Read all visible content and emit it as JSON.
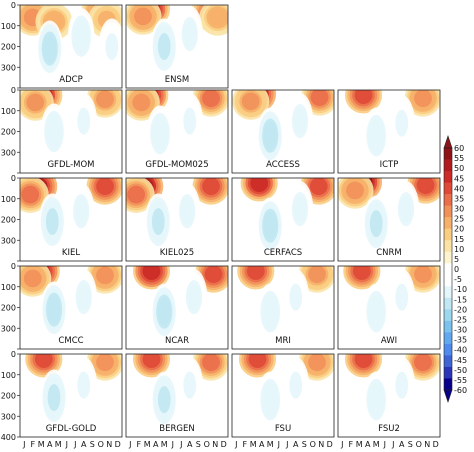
{
  "chart_data": {
    "type": "heatmap",
    "title": "",
    "xlabel": "",
    "ylabel": "",
    "months": [
      "J",
      "F",
      "M",
      "A",
      "M",
      "J",
      "J",
      "A",
      "S",
      "O",
      "N",
      "D"
    ],
    "y_ticks": [
      0,
      100,
      200,
      300,
      400
    ],
    "ylim": [
      400,
      0
    ],
    "colorbar": {
      "ticks": [
        60,
        55,
        50,
        45,
        40,
        35,
        30,
        25,
        20,
        15,
        10,
        5,
        0,
        -5,
        -10,
        -15,
        -20,
        -25,
        -30,
        -35,
        -40,
        -45,
        -50,
        -55,
        -60
      ],
      "tick_labels": [
        "60",
        "55",
        "50",
        "45",
        "40",
        "35",
        "30",
        "25",
        "20",
        "15",
        "10",
        "5",
        "0",
        "-5",
        "-10",
        "-15",
        "-20",
        "-25",
        "-30",
        "-35",
        "-40",
        "-45",
        "-50",
        "-55",
        "-60"
      ],
      "range": [
        -60,
        60
      ],
      "colors": [
        "#08008a",
        "#2a35b8",
        "#3f65d5",
        "#4f8bec",
        "#62a8f0",
        "#7cc2ef",
        "#9dd7ee",
        "#c0e7f2",
        "#e5f6fb",
        "#ffffff",
        "#ffffff",
        "#fdf3cf",
        "#fbe3a6",
        "#f9cd82",
        "#f6b06a",
        "#f1915a",
        "#ea6e4a",
        "#df4a38",
        "#cc2b27",
        "#b01c1f",
        "#8e1316"
      ]
    },
    "grid": {
      "rows": 5,
      "cols": 4
    },
    "panels": [
      {
        "name": "ADCP",
        "row": 0,
        "col": 0,
        "fields": [
          {
            "month": 2.6,
            "depth": 35,
            "value": 42
          },
          {
            "month": 1.5,
            "depth": 60,
            "value": 30
          },
          {
            "month": 4.0,
            "depth": 80,
            "value": 25
          },
          {
            "month": 9.3,
            "depth": 40,
            "value": 30
          },
          {
            "month": 10.2,
            "depth": 70,
            "value": 22
          },
          {
            "month": 3.5,
            "depth": 210,
            "value": -18
          },
          {
            "month": 7.2,
            "depth": 150,
            "value": -14
          },
          {
            "month": 10.8,
            "depth": 200,
            "value": -10
          }
        ]
      },
      {
        "name": "ENSM",
        "row": 0,
        "col": 1,
        "fields": [
          {
            "month": 3.0,
            "depth": 20,
            "value": 45
          },
          {
            "month": 2.0,
            "depth": 55,
            "value": 30
          },
          {
            "month": 9.8,
            "depth": 35,
            "value": 35
          },
          {
            "month": 10.8,
            "depth": 60,
            "value": 25
          },
          {
            "month": 4.5,
            "depth": 200,
            "value": -16
          },
          {
            "month": 7.5,
            "depth": 140,
            "value": -12
          }
        ]
      },
      {
        "name": "GFDL-MOM",
        "row": 1,
        "col": 0,
        "fields": [
          {
            "month": 2.8,
            "depth": 25,
            "value": 44
          },
          {
            "month": 1.8,
            "depth": 60,
            "value": 28
          },
          {
            "month": 10.0,
            "depth": 45,
            "value": 28
          },
          {
            "month": 4.0,
            "depth": 200,
            "value": -14
          },
          {
            "month": 7.5,
            "depth": 150,
            "value": -10
          }
        ]
      },
      {
        "name": "GFDL-MOM025",
        "row": 1,
        "col": 1,
        "fields": [
          {
            "month": 2.8,
            "depth": 25,
            "value": 48
          },
          {
            "month": 1.8,
            "depth": 60,
            "value": 30
          },
          {
            "month": 10.0,
            "depth": 40,
            "value": 32
          },
          {
            "month": 4.0,
            "depth": 210,
            "value": -14
          },
          {
            "month": 7.5,
            "depth": 150,
            "value": -10
          }
        ]
      },
      {
        "name": "ACCESS",
        "row": 1,
        "col": 2,
        "fields": [
          {
            "month": 3.0,
            "depth": 20,
            "value": 52
          },
          {
            "month": 2.2,
            "depth": 55,
            "value": 28
          },
          {
            "month": 10.3,
            "depth": 35,
            "value": 35
          },
          {
            "month": 4.5,
            "depth": 220,
            "value": -18
          },
          {
            "month": 8.0,
            "depth": 150,
            "value": -12
          }
        ]
      },
      {
        "name": "ICTP",
        "row": 1,
        "col": 3,
        "fields": [
          {
            "month": 3.0,
            "depth": 25,
            "value": 38
          },
          {
            "month": 10.0,
            "depth": 40,
            "value": 30
          },
          {
            "month": 4.5,
            "depth": 220,
            "value": -14
          },
          {
            "month": 7.5,
            "depth": 160,
            "value": -10
          }
        ]
      },
      {
        "name": "KIEL",
        "row": 2,
        "col": 0,
        "fields": [
          {
            "month": 2.2,
            "depth": 40,
            "value": 50
          },
          {
            "month": 1.2,
            "depth": 80,
            "value": 32
          },
          {
            "month": 10.0,
            "depth": 40,
            "value": 40
          },
          {
            "month": 3.8,
            "depth": 210,
            "value": -16
          },
          {
            "month": 7.2,
            "depth": 160,
            "value": -12
          }
        ]
      },
      {
        "name": "KIEL025",
        "row": 2,
        "col": 1,
        "fields": [
          {
            "month": 2.2,
            "depth": 40,
            "value": 52
          },
          {
            "month": 1.2,
            "depth": 80,
            "value": 32
          },
          {
            "month": 10.0,
            "depth": 40,
            "value": 40
          },
          {
            "month": 3.8,
            "depth": 210,
            "value": -16
          },
          {
            "month": 7.2,
            "depth": 160,
            "value": -12
          }
        ]
      },
      {
        "name": "CERFACS",
        "row": 2,
        "col": 2,
        "fields": [
          {
            "month": 3.2,
            "depth": 25,
            "value": 45
          },
          {
            "month": 10.2,
            "depth": 40,
            "value": 38
          },
          {
            "month": 4.5,
            "depth": 230,
            "value": -18
          },
          {
            "month": 8.0,
            "depth": 150,
            "value": -12
          }
        ]
      },
      {
        "name": "CNRM",
        "row": 2,
        "col": 3,
        "fields": [
          {
            "month": 3.0,
            "depth": 20,
            "value": 55
          },
          {
            "month": 2.0,
            "depth": 60,
            "value": 30
          },
          {
            "month": 10.3,
            "depth": 35,
            "value": 42
          },
          {
            "month": 4.5,
            "depth": 220,
            "value": -16
          },
          {
            "month": 8.0,
            "depth": 150,
            "value": -12
          }
        ]
      },
      {
        "name": "CMCC",
        "row": 3,
        "col": 0,
        "fields": [
          {
            "month": 2.5,
            "depth": 25,
            "value": 48
          },
          {
            "month": 1.5,
            "depth": 60,
            "value": 30
          },
          {
            "month": 10.0,
            "depth": 45,
            "value": 30
          },
          {
            "month": 4.0,
            "depth": 210,
            "value": -18
          },
          {
            "month": 7.5,
            "depth": 150,
            "value": -12
          }
        ]
      },
      {
        "name": "NCAR",
        "row": 3,
        "col": 1,
        "fields": [
          {
            "month": 3.0,
            "depth": 25,
            "value": 48
          },
          {
            "month": 10.3,
            "depth": 40,
            "value": 38
          },
          {
            "month": 4.5,
            "depth": 220,
            "value": -20
          },
          {
            "month": 8.0,
            "depth": 150,
            "value": -12
          }
        ]
      },
      {
        "name": "MRI",
        "row": 3,
        "col": 2,
        "fields": [
          {
            "month": 2.8,
            "depth": 25,
            "value": 40
          },
          {
            "month": 10.0,
            "depth": 40,
            "value": 28
          },
          {
            "month": 4.5,
            "depth": 220,
            "value": -14
          },
          {
            "month": 7.5,
            "depth": 150,
            "value": -10
          }
        ]
      },
      {
        "name": "AWI",
        "row": 3,
        "col": 3,
        "fields": [
          {
            "month": 2.8,
            "depth": 25,
            "value": 40
          },
          {
            "month": 10.0,
            "depth": 40,
            "value": 30
          },
          {
            "month": 4.5,
            "depth": 220,
            "value": -14
          },
          {
            "month": 7.5,
            "depth": 150,
            "value": -10
          }
        ]
      },
      {
        "name": "GFDL-GOLD",
        "row": 4,
        "col": 0,
        "fields": [
          {
            "month": 2.8,
            "depth": 25,
            "value": 42
          },
          {
            "month": 10.0,
            "depth": 40,
            "value": 30
          },
          {
            "month": 4.0,
            "depth": 210,
            "value": -16
          },
          {
            "month": 7.5,
            "depth": 150,
            "value": -10
          }
        ]
      },
      {
        "name": "BERGEN",
        "row": 4,
        "col": 1,
        "fields": [
          {
            "month": 3.0,
            "depth": 25,
            "value": 42
          },
          {
            "month": 10.0,
            "depth": 40,
            "value": 32
          },
          {
            "month": 4.5,
            "depth": 220,
            "value": -16
          },
          {
            "month": 7.5,
            "depth": 150,
            "value": -10
          }
        ]
      },
      {
        "name": "FSU",
        "row": 4,
        "col": 2,
        "fields": [
          {
            "month": 3.0,
            "depth": 25,
            "value": 40
          },
          {
            "month": 10.0,
            "depth": 40,
            "value": 30
          },
          {
            "month": 4.5,
            "depth": 220,
            "value": -14
          },
          {
            "month": 7.5,
            "depth": 150,
            "value": -10
          }
        ]
      },
      {
        "name": "FSU2",
        "row": 4,
        "col": 3,
        "fields": [
          {
            "month": 3.0,
            "depth": 25,
            "value": 42
          },
          {
            "month": 10.0,
            "depth": 40,
            "value": 32
          },
          {
            "month": 4.5,
            "depth": 220,
            "value": -14
          },
          {
            "month": 7.5,
            "depth": 150,
            "value": -10
          }
        ]
      }
    ]
  }
}
